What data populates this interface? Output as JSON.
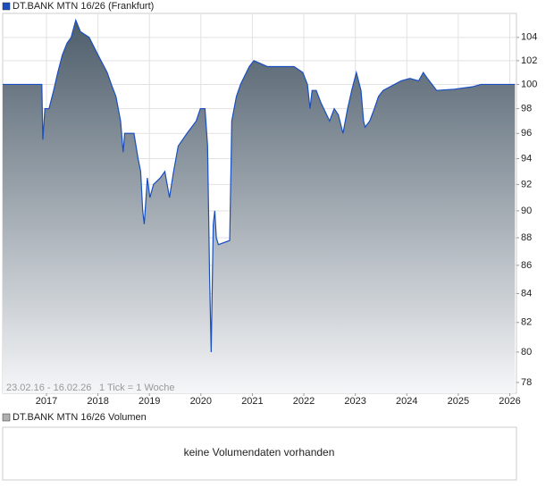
{
  "chart_data": {
    "type": "area",
    "title": "DT.BANK MTN 16/26 (Frankfurt)",
    "range_note": "23.02.16 - 16.02.26",
    "tick_note": "1 Tick = 1 Woche",
    "log_scale": true,
    "grid": true,
    "series": [
      {
        "name": "DT.BANK MTN 16/26 (Frankfurt)",
        "color": "#1a4fc0",
        "x": [
          2016.15,
          2016.91,
          2016.93,
          2016.97,
          2017.05,
          2017.14,
          2017.22,
          2017.31,
          2017.4,
          2017.48,
          2017.57,
          2017.66,
          2017.83,
          2018.0,
          2018.18,
          2018.26,
          2018.35,
          2018.44,
          2018.49,
          2018.52,
          2018.7,
          2018.78,
          2018.83,
          2018.87,
          2018.9,
          2018.96,
          2019.01,
          2019.08,
          2019.21,
          2019.3,
          2019.39,
          2019.47,
          2019.56,
          2019.73,
          2019.91,
          2019.99,
          2020.08,
          2020.13,
          2020.17,
          2020.2,
          2020.24,
          2020.27,
          2020.3,
          2020.34,
          2020.56,
          2020.6,
          2020.69,
          2020.77,
          2020.94,
          2021.03,
          2021.29,
          2021.81,
          2021.98,
          2022.07,
          2022.12,
          2022.16,
          2022.24,
          2022.33,
          2022.5,
          2022.59,
          2022.67,
          2022.76,
          2022.85,
          2022.93,
          2023.02,
          2023.11,
          2023.16,
          2023.19,
          2023.28,
          2023.37,
          2023.45,
          2023.54,
          2023.89,
          2024.06,
          2024.23,
          2024.32,
          2024.4,
          2024.58,
          2024.92,
          2025.27,
          2025.44,
          2026.1
        ],
        "values": [
          100,
          100,
          95.5,
          98,
          98,
          99.5,
          101,
          102.5,
          103.5,
          104,
          105.5,
          104.5,
          104,
          102.5,
          101,
          100,
          99,
          97,
          94.5,
          96,
          96,
          94,
          93,
          90,
          89,
          92.5,
          91,
          92,
          92.5,
          93,
          91,
          93,
          95,
          96,
          97,
          98,
          98,
          95,
          85,
          80,
          89,
          90,
          88,
          87.5,
          87.8,
          97,
          99,
          100,
          101.5,
          102,
          101.5,
          101.5,
          101,
          100,
          98,
          99.5,
          99.5,
          98.5,
          97,
          98,
          97.5,
          96,
          98,
          99.5,
          101,
          99.5,
          97,
          96.5,
          97,
          98,
          99,
          99.5,
          100.3,
          100.5,
          100.3,
          101,
          100.5,
          99.5,
          99.6,
          99.8,
          100,
          100
        ]
      }
    ],
    "xlim": [
      2016.15,
      2026.13
    ],
    "xticks": [
      2017,
      2018,
      2019,
      2020,
      2021,
      2022,
      2023,
      2024,
      2025,
      2026
    ],
    "ylim": [
      77.3,
      106.1
    ],
    "yticks": [
      78,
      80,
      82,
      84,
      86,
      88,
      90,
      92,
      94,
      96,
      98,
      100,
      102,
      104
    ]
  },
  "volume_panel": {
    "title": "DT.BANK MTN 16/26 Volumen",
    "color": "#b0b0b0",
    "message": "keine Volumendaten vorhanden"
  }
}
